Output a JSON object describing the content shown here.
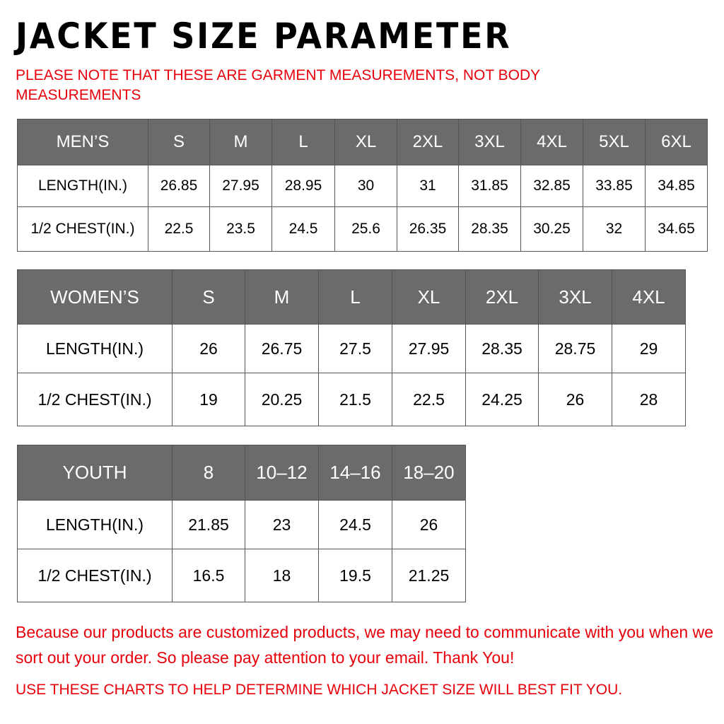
{
  "title": "JACKET SIZE PARAMETER",
  "note": "PLEASE NOTE THAT THESE ARE GARMENT MEASUREMENTS, NOT BODY MEASUREMENTS",
  "colors": {
    "header_bg": "#6b6b6b",
    "accent_red": "#e8000b"
  },
  "tables": {
    "men": {
      "header": [
        "MEN’S",
        "S",
        "M",
        "L",
        "XL",
        "2XL",
        "3XL",
        "4XL",
        "5XL",
        "6XL"
      ],
      "rows": [
        [
          "LENGTH(IN.)",
          "26.85",
          "27.95",
          "28.95",
          "30",
          "31",
          "31.85",
          "32.85",
          "33.85",
          "34.85"
        ],
        [
          "1/2 CHEST(IN.)",
          "22.5",
          "23.5",
          "24.5",
          "25.6",
          "26.35",
          "28.35",
          "30.25",
          "32",
          "34.65"
        ]
      ]
    },
    "women": {
      "header": [
        "WOMEN’S",
        "S",
        "M",
        "L",
        "XL",
        "2XL",
        "3XL",
        "4XL"
      ],
      "rows": [
        [
          "LENGTH(IN.)",
          "26",
          "26.75",
          "27.5",
          "27.95",
          "28.35",
          "28.75",
          "29"
        ],
        [
          "1/2 CHEST(IN.)",
          "19",
          "20.25",
          "21.5",
          "22.5",
          "24.25",
          "26",
          "28"
        ]
      ]
    },
    "youth": {
      "header": [
        "YOUTH",
        "8",
        "10–12",
        "14–16",
        "18–20"
      ],
      "rows": [
        [
          "LENGTH(IN.)",
          "21.85",
          "23",
          "24.5",
          "26"
        ],
        [
          "1/2 CHEST(IN.)",
          "16.5",
          "18",
          "19.5",
          "21.25"
        ]
      ]
    }
  },
  "footer": {
    "message": "Because our products are customized products, we may need to communicate with you when we sort out your order. So please pay attention to your email. Thank You!",
    "advice": "USE THESE CHARTS TO HELP DETERMINE WHICH JACKET SIZE WILL BEST FIT YOU."
  }
}
